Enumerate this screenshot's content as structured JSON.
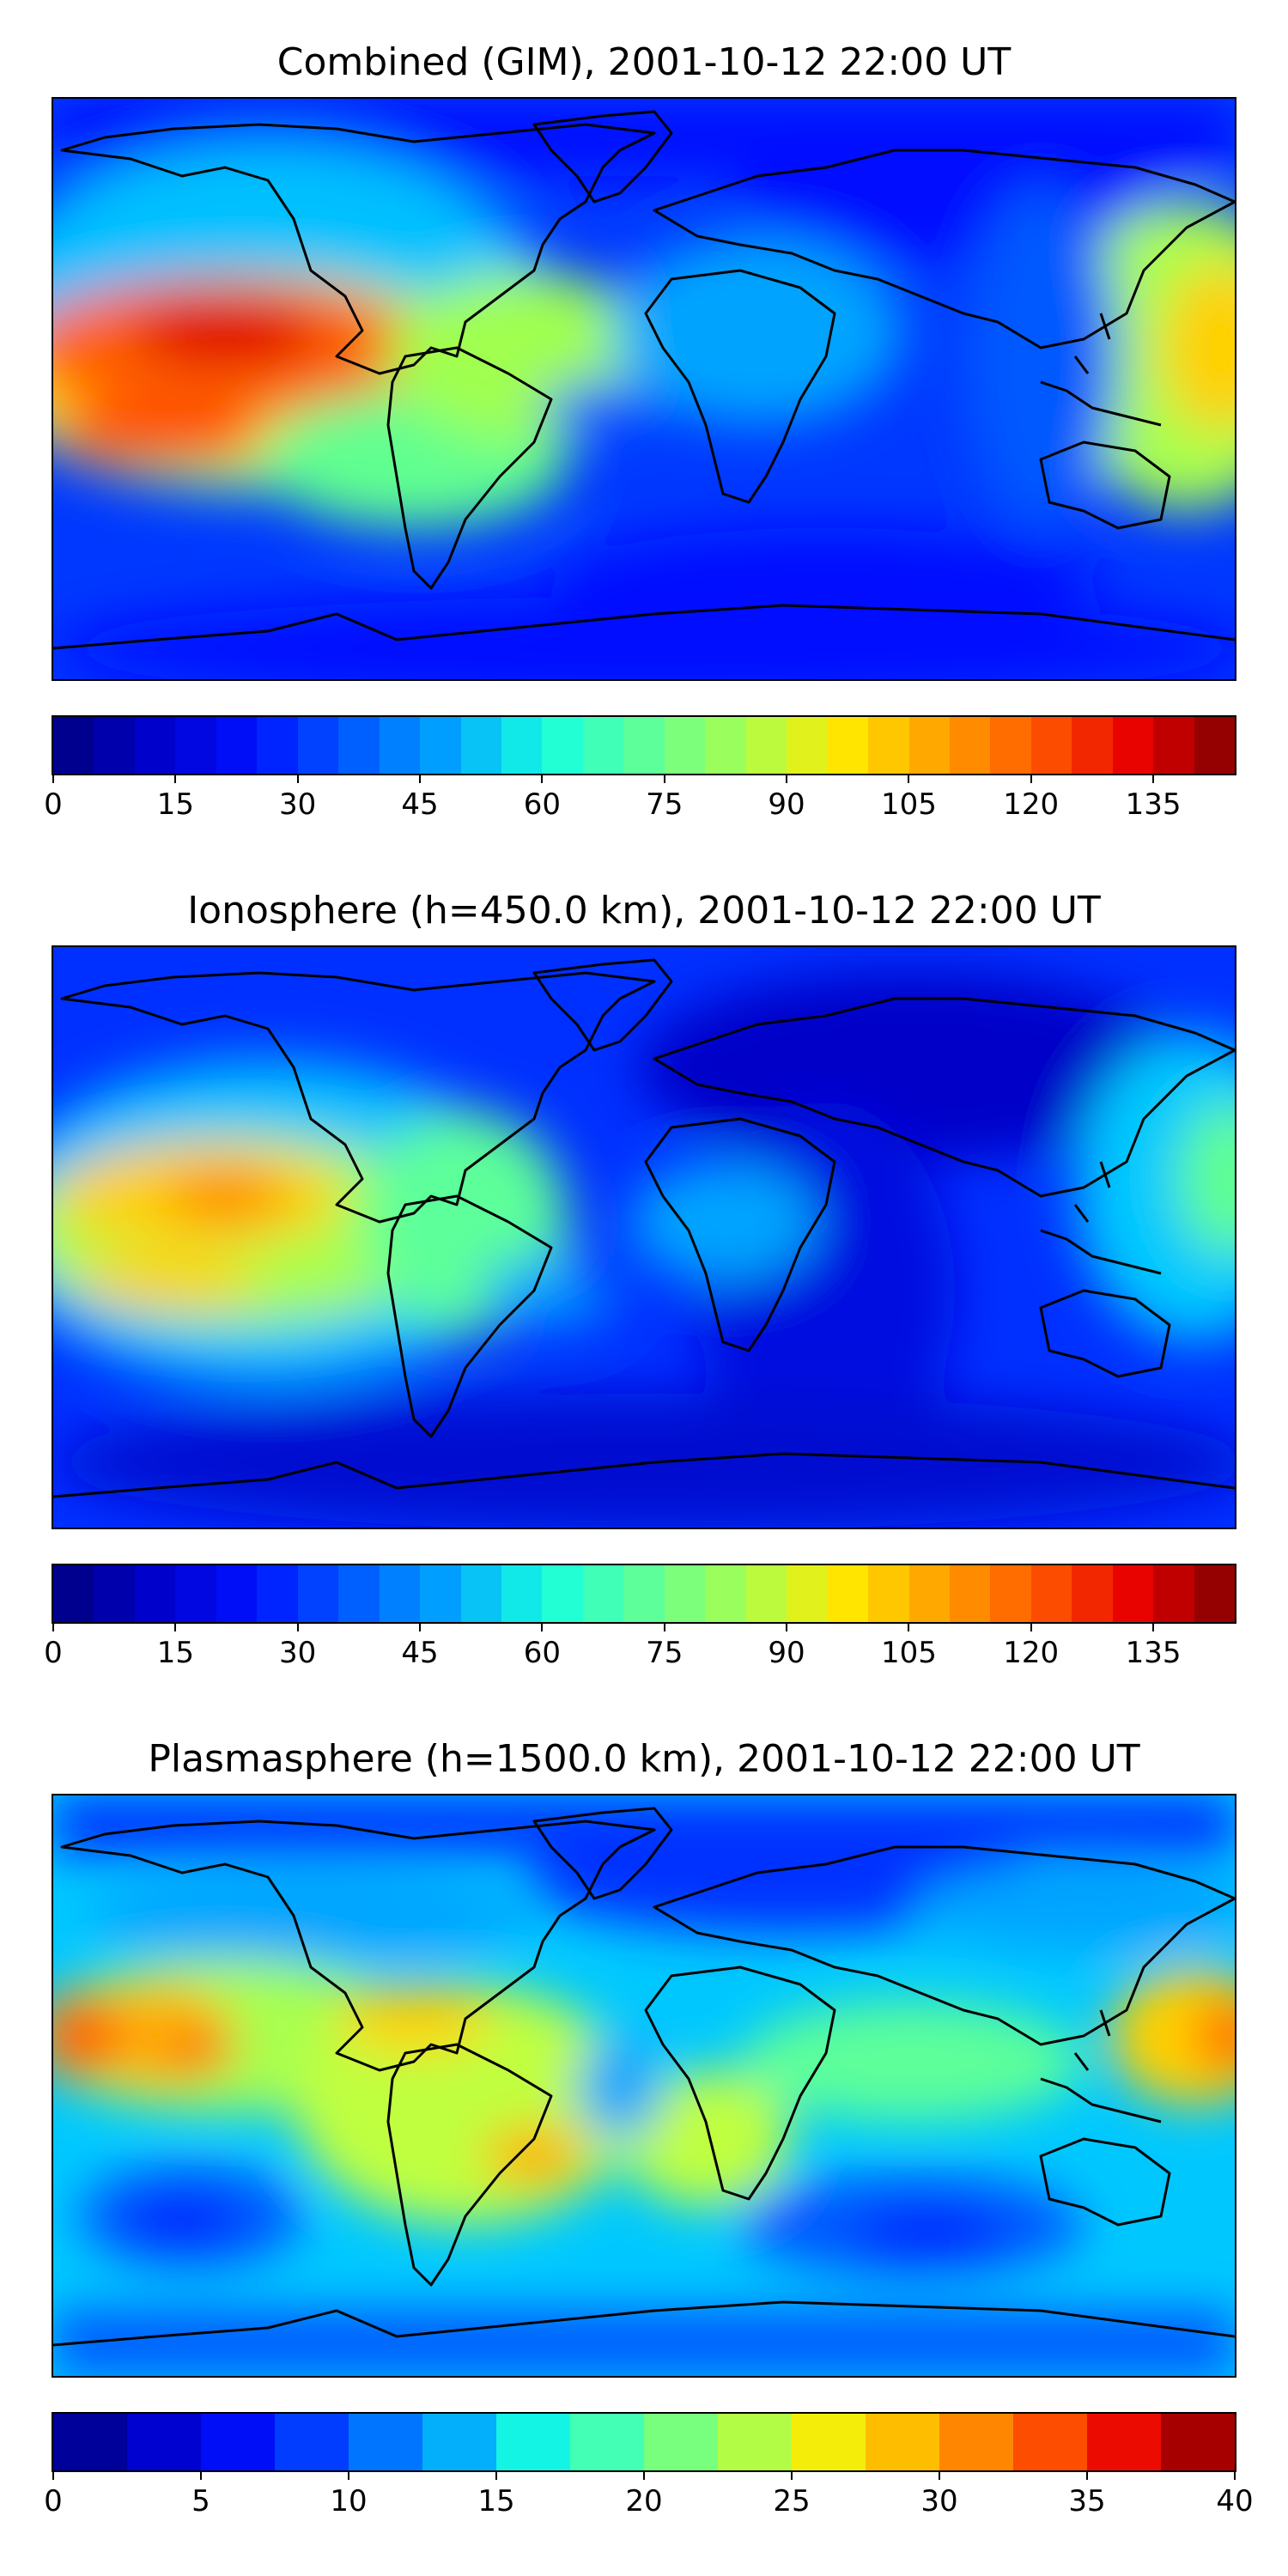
{
  "panels": [
    {
      "title": "Combined (GIM), 2001-10-12 22:00 UT",
      "colorbar": {
        "ticks": [
          "0",
          "15",
          "30",
          "45",
          "60",
          "75",
          "90",
          "105",
          "120",
          "135"
        ],
        "vmin": 0,
        "vmax": 145,
        "levels": 29
      },
      "max_region_level": "high (red) over eastern Pacific"
    },
    {
      "title": "Ionosphere  (h=450.0 km), 2001-10-12 22:00 UT",
      "colorbar": {
        "ticks": [
          "0",
          "15",
          "30",
          "45",
          "60",
          "75",
          "90",
          "105",
          "120",
          "135"
        ],
        "vmin": 0,
        "vmax": 145,
        "levels": 29
      }
    },
    {
      "title": "Plasmasphere (h=1500.0 km), 2001-10-12 22:00 UT",
      "colorbar": {
        "ticks": [
          "0",
          "5",
          "10",
          "15",
          "20",
          "25",
          "30",
          "35",
          "40"
        ],
        "vmin": 0,
        "vmax": 40,
        "levels": 16
      }
    }
  ],
  "colors": {
    "jet": [
      "#00007f",
      "#0000c8",
      "#0010ff",
      "#0058ff",
      "#00a4ff",
      "#16ffe1",
      "#5dff9a",
      "#a7ff50",
      "#ffea00",
      "#ffa200",
      "#ff5800",
      "#e80000",
      "#7f0000"
    ]
  }
}
